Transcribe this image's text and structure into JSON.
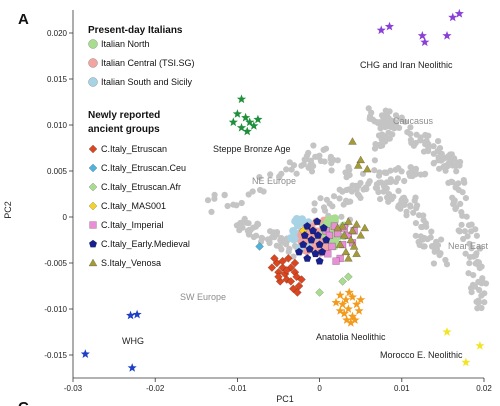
{
  "panel_label": "A",
  "next_panel_label": "C",
  "chart_data": {
    "type": "scatter",
    "xlabel": "PC1",
    "ylabel": "PC2",
    "xlim": [
      -0.03,
      0.02
    ],
    "ylim": [
      -0.0175,
      0.0225
    ],
    "xticks": [
      -0.03,
      -0.02,
      -0.01,
      0,
      0.01,
      0.02
    ],
    "xtick_labels": [
      "-0.03",
      "-0.02",
      "-0.01",
      "0",
      "0.01",
      "0.02"
    ],
    "yticks": [
      0.02,
      0.015,
      0.01,
      0.005,
      0,
      -0.005,
      -0.01,
      -0.015
    ],
    "ytick_labels": [
      "0.020",
      "0.015",
      "0.010",
      "0.005",
      "0",
      "-0.005",
      "-0.010",
      "-0.015"
    ],
    "grid": false,
    "legend_placement": "top-left",
    "legend": {
      "present_header": "Present-day Italians",
      "present": [
        {
          "label": "Italian North",
          "marker": "circle",
          "color": "#a8dc8e"
        },
        {
          "label": "Italian Central (TSI.SG)",
          "marker": "circle",
          "color": "#f2a5a0"
        },
        {
          "label": "Italian South and Sicily",
          "marker": "circle",
          "color": "#a8d3e4"
        }
      ],
      "ancient_header_line1": "Newly reported",
      "ancient_header_line2": "ancient groups",
      "ancient": [
        {
          "label": "C.Italy_Etruscan",
          "marker": "diamond",
          "color": "#d9461f"
        },
        {
          "label": "C.Italy_Etruscan.Ceu",
          "marker": "diamond",
          "color": "#4fb3dc"
        },
        {
          "label": "C.Italy_Etruscan.Afr",
          "marker": "diamond",
          "color": "#a8dc8e"
        },
        {
          "label": "C.Italy_MAS001",
          "marker": "diamond",
          "color": "#f2d22b"
        },
        {
          "label": "C.Italy_Imperial",
          "marker": "square",
          "color": "#e88fd8"
        },
        {
          "label": "C.Italy_Early.Medieval",
          "marker": "pentagon",
          "color": "#17208f"
        },
        {
          "label": "S.Italy_Venosa",
          "marker": "triangle",
          "color": "#a59a3a"
        }
      ]
    },
    "annotations": {
      "chg": "CHG and Iran Neolithic",
      "steppe": "Steppe Bronze Age",
      "caucasus": "Caucasus",
      "ne_europe": "NE Europe",
      "near_east": "Near East",
      "sw_europe": "SW Europe",
      "whg": "WHG",
      "anatolia": "Anatolia Neolithic",
      "morocco": "Morocco E. Neolithic"
    },
    "series": [
      {
        "name": "CHG and Iran Neolithic",
        "marker": "star",
        "color": "#8a3fd6",
        "points": [
          [
            0.0075,
            0.0203
          ],
          [
            0.0085,
            0.0207
          ],
          [
            0.0125,
            0.0197
          ],
          [
            0.0128,
            0.019
          ],
          [
            0.0155,
            0.0197
          ],
          [
            0.0162,
            0.0217
          ],
          [
            0.017,
            0.0221
          ]
        ]
      },
      {
        "name": "Steppe Bronze Age",
        "marker": "star",
        "color": "#1e8f3a",
        "points": [
          [
            -0.0095,
            0.0128
          ],
          [
            -0.01,
            0.0112
          ],
          [
            -0.009,
            0.0108
          ],
          [
            -0.0105,
            0.0103
          ],
          [
            -0.0085,
            0.0103
          ],
          [
            -0.0095,
            0.0097
          ],
          [
            -0.008,
            0.0099
          ],
          [
            -0.0088,
            0.0093
          ],
          [
            -0.0075,
            0.0106
          ]
        ]
      },
      {
        "name": "WHG",
        "marker": "star",
        "color": "#1f3fc4",
        "points": [
          [
            -0.0285,
            -0.0149
          ],
          [
            -0.023,
            -0.0107
          ],
          [
            -0.0222,
            -0.0106
          ],
          [
            -0.0228,
            -0.0164
          ]
        ]
      },
      {
        "name": "Morocco E. Neolithic",
        "marker": "star",
        "color": "#f2e428",
        "points": [
          [
            0.0155,
            -0.0125
          ],
          [
            0.0195,
            -0.014
          ],
          [
            0.0178,
            -0.0158
          ]
        ]
      },
      {
        "name": "Anatolia Neolithic",
        "marker": "star",
        "color": "#f29b1d",
        "points": [
          [
            0.0025,
            -0.0085
          ],
          [
            0.0032,
            -0.009
          ],
          [
            0.004,
            -0.0087
          ],
          [
            0.0028,
            -0.0095
          ],
          [
            0.0035,
            -0.01
          ],
          [
            0.0045,
            -0.0095
          ],
          [
            0.003,
            -0.0105
          ],
          [
            0.004,
            -0.0108
          ],
          [
            0.0048,
            -0.0102
          ],
          [
            0.0025,
            -0.0102
          ],
          [
            0.0038,
            -0.0115
          ],
          [
            0.0043,
            -0.0112
          ],
          [
            0.0033,
            -0.0112
          ],
          [
            0.002,
            -0.0093
          ],
          [
            0.005,
            -0.009
          ],
          [
            0.0036,
            -0.0082
          ]
        ]
      },
      {
        "name": "C.Italy_Etruscan",
        "marker": "diamond",
        "color": "#d9461f",
        "points": [
          [
            -0.0058,
            -0.0055
          ],
          [
            -0.005,
            -0.006
          ],
          [
            -0.0045,
            -0.0055
          ],
          [
            -0.0042,
            -0.0062
          ],
          [
            -0.0052,
            -0.005
          ],
          [
            -0.0035,
            -0.0055
          ],
          [
            -0.003,
            -0.006
          ],
          [
            -0.004,
            -0.0068
          ],
          [
            -0.0035,
            -0.007
          ],
          [
            -0.0028,
            -0.0065
          ],
          [
            -0.0045,
            -0.0048
          ],
          [
            -0.0055,
            -0.0045
          ],
          [
            -0.0038,
            -0.0045
          ],
          [
            -0.0025,
            -0.0075
          ],
          [
            -0.0032,
            -0.0078
          ],
          [
            -0.0048,
            -0.007
          ],
          [
            -0.003,
            -0.005
          ],
          [
            -0.0022,
            -0.0068
          ],
          [
            -0.004,
            -0.0058
          ],
          [
            -0.0027,
            -0.0082
          ],
          [
            -0.005,
            -0.0065
          ]
        ]
      },
      {
        "name": "C.Italy_Etruscan.Ceu",
        "marker": "diamond",
        "color": "#4fb3dc",
        "points": [
          [
            -0.0073,
            -0.0032
          ]
        ]
      },
      {
        "name": "C.Italy_Etruscan.Afr",
        "marker": "diamond",
        "color": "#a8dc8e",
        "points": [
          [
            0.0,
            -0.0082
          ],
          [
            0.0028,
            -0.007
          ],
          [
            0.0035,
            -0.0065
          ]
        ]
      },
      {
        "name": "C.Italy_MAS001",
        "marker": "diamond",
        "color": "#f2d22b",
        "points": [
          [
            -0.002,
            -0.0015
          ]
        ]
      },
      {
        "name": "C.Italy_Imperial",
        "marker": "square",
        "color": "#e88fd8",
        "points": [
          [
            0.0008,
            -0.0015
          ],
          [
            0.0012,
            -0.002
          ],
          [
            0.0018,
            -0.001
          ],
          [
            0.0022,
            -0.0018
          ],
          [
            0.003,
            -0.0012
          ],
          [
            0.0035,
            -0.002
          ],
          [
            0.0028,
            -0.003
          ],
          [
            0.004,
            -0.0028
          ],
          [
            0.0015,
            -0.0032
          ],
          [
            0.0025,
            -0.0045
          ],
          [
            0.001,
            -0.004
          ],
          [
            0.0042,
            -0.0015
          ],
          [
            0.002,
            -0.0048
          ]
        ]
      },
      {
        "name": "C.Italy_Early.Medieval",
        "marker": "pentagon",
        "color": "#17208f",
        "points": [
          [
            -0.0015,
            -0.001
          ],
          [
            -0.0008,
            -0.0015
          ],
          [
            -0.001,
            -0.0025
          ],
          [
            -0.0002,
            -0.002
          ],
          [
            0.0,
            -0.003
          ],
          [
            -0.0012,
            -0.0035
          ],
          [
            0.0005,
            -0.0012
          ],
          [
            -0.0005,
            -0.004
          ],
          [
            -0.0018,
            -0.002
          ],
          [
            -0.0003,
            -0.0005
          ],
          [
            0.0003,
            -0.0038
          ],
          [
            0.0008,
            -0.0025
          ],
          [
            -0.002,
            -0.003
          ],
          [
            -0.0015,
            -0.0045
          ],
          [
            0.0,
            -0.0048
          ],
          [
            -0.0025,
            -0.0038
          ]
        ]
      },
      {
        "name": "S.Italy_Venosa",
        "marker": "triangle",
        "color": "#a59a3a",
        "points": [
          [
            0.0028,
            -0.001
          ],
          [
            0.0035,
            -0.0005
          ],
          [
            0.004,
            -0.0015
          ],
          [
            0.0045,
            -0.0008
          ],
          [
            0.003,
            -0.002
          ],
          [
            0.0038,
            -0.0025
          ],
          [
            0.005,
            -0.002
          ],
          [
            0.0042,
            -0.0032
          ],
          [
            0.0032,
            -0.0038
          ],
          [
            0.0022,
            -0.0012
          ],
          [
            0.0055,
            -0.0012
          ],
          [
            0.0045,
            -0.004
          ],
          [
            0.004,
            0.0082
          ],
          [
            0.005,
            0.0062
          ],
          [
            0.0058,
            0.0052
          ],
          [
            0.0047,
            0.0056
          ],
          [
            0.0035,
            -0.0045
          ],
          [
            0.0025,
            -0.003
          ]
        ]
      }
    ]
  }
}
